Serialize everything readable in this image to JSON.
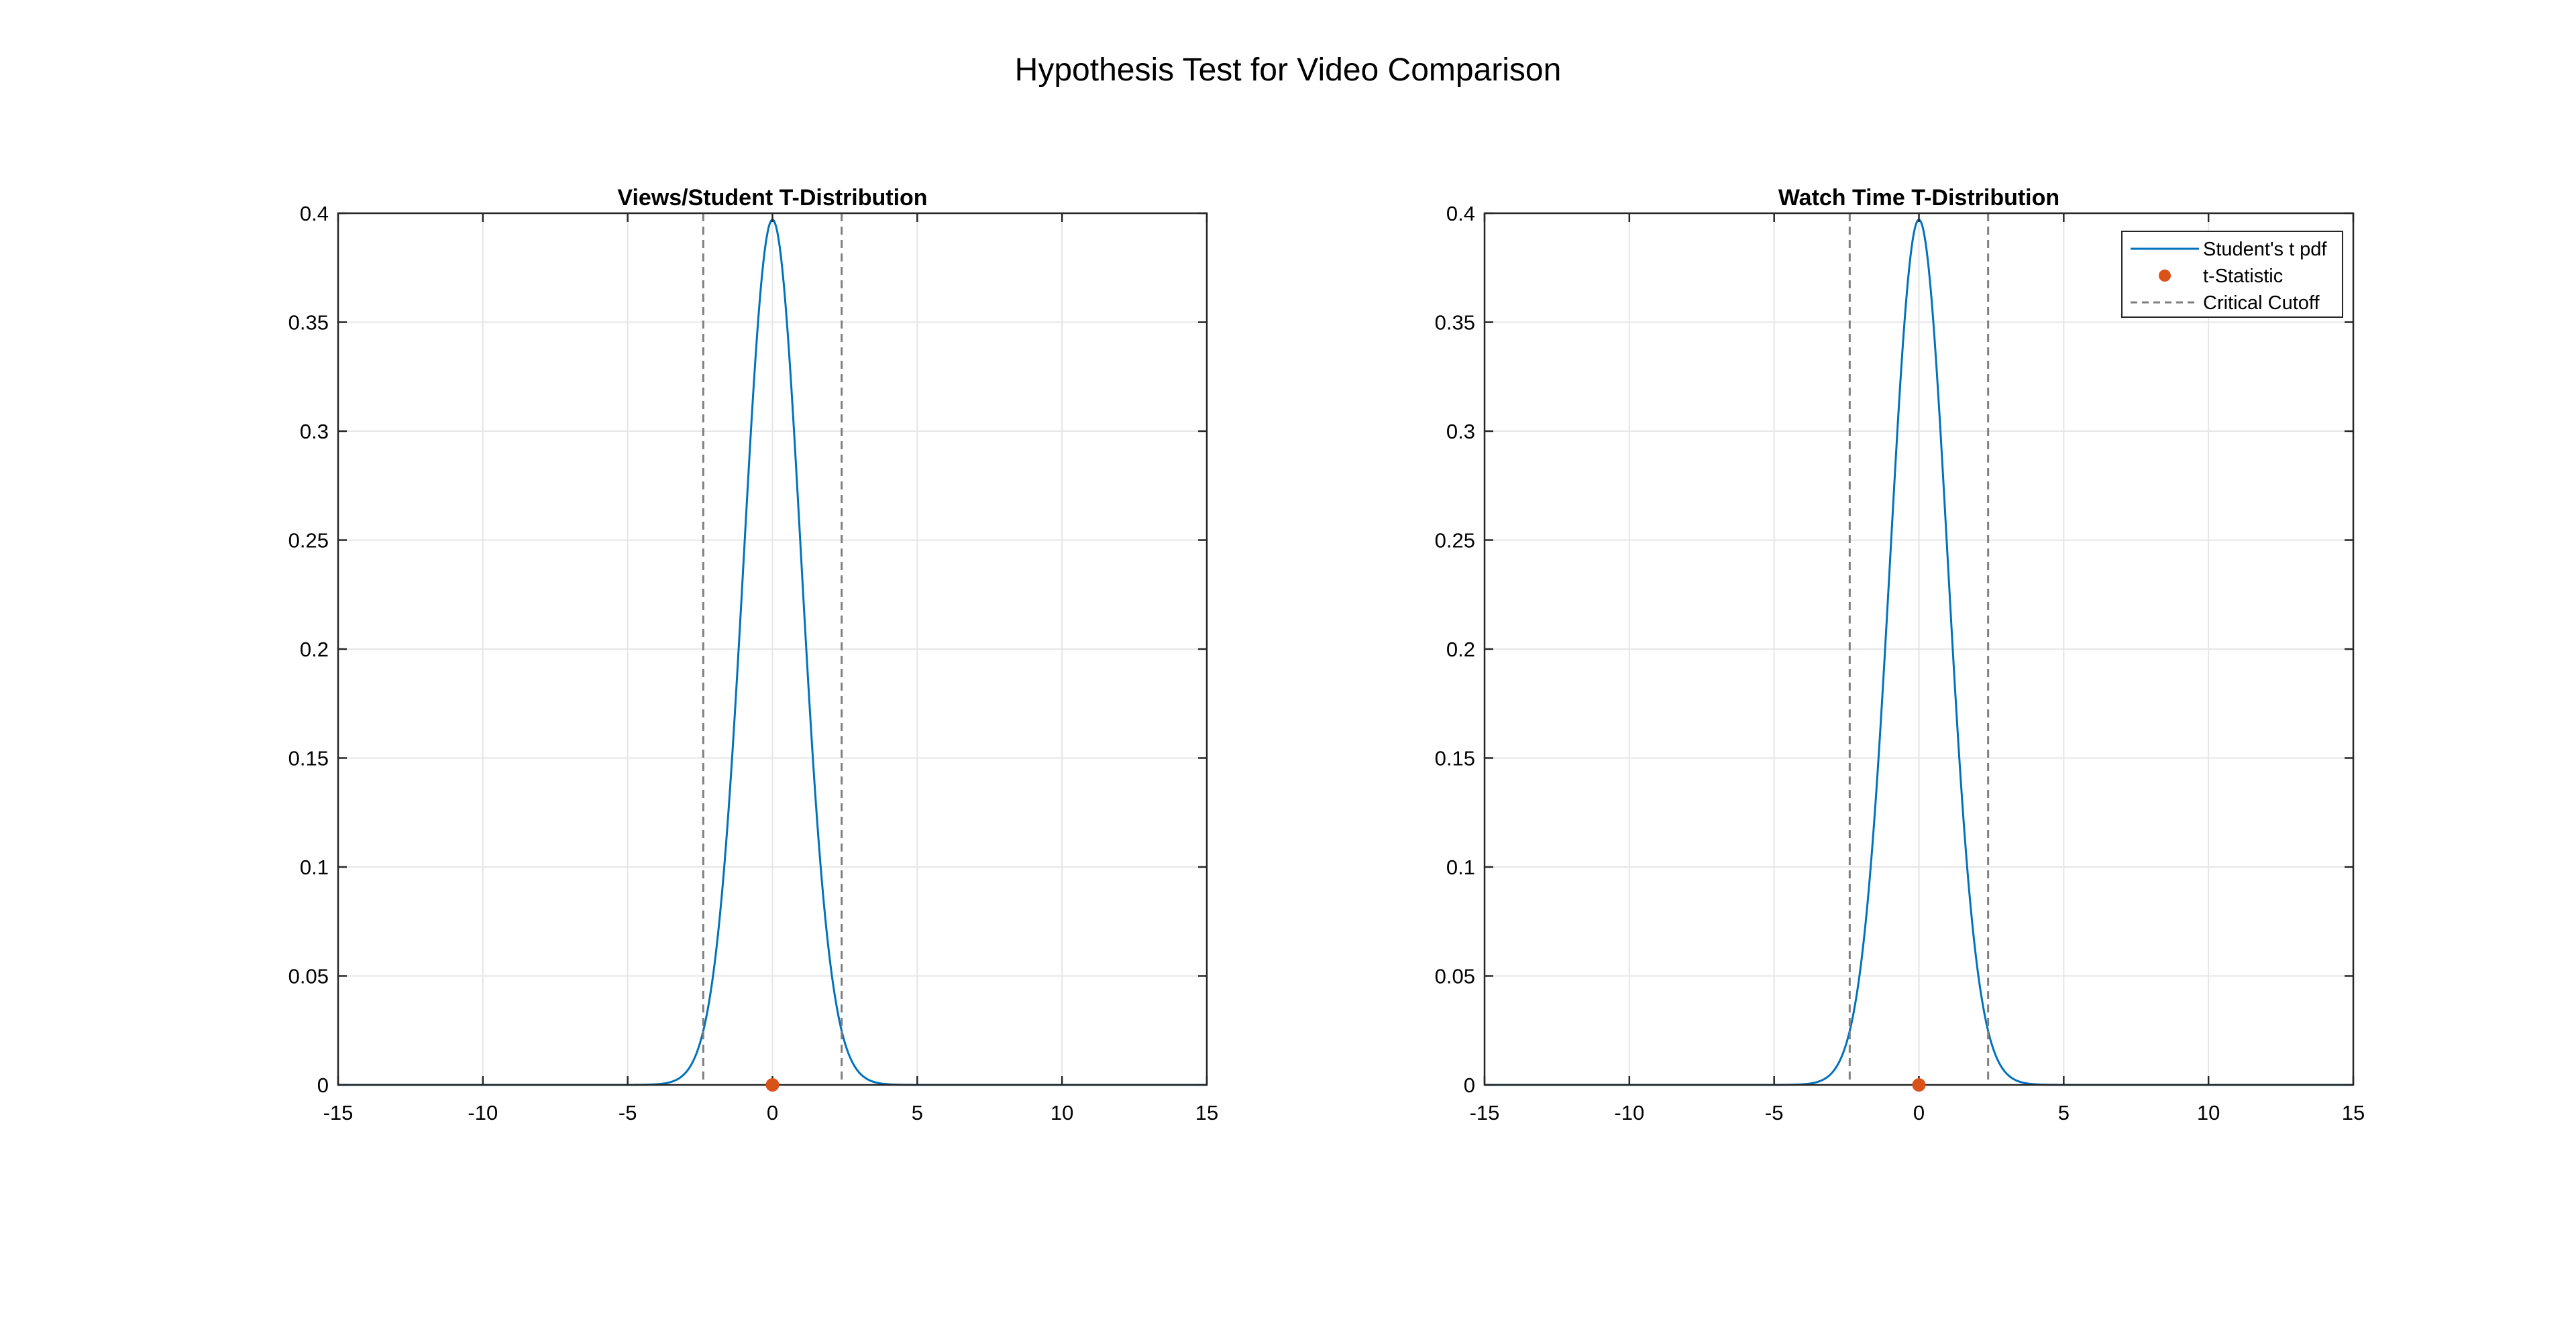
{
  "figure": {
    "title": "Hypothesis Test for Video Comparison"
  },
  "colors": {
    "pdf_line": "#0072BD",
    "t_statistic": "#D95319",
    "critical_cutoff": "#7f7f7f",
    "grid": "#e6e6e6",
    "axes": "#262626"
  },
  "chart_data": [
    {
      "type": "line",
      "title": "Views/Student T-Distribution",
      "xlabel": "",
      "ylabel": "",
      "xlim": [
        -15,
        15
      ],
      "ylim": [
        0,
        0.4
      ],
      "xticks": [
        -15,
        -10,
        -5,
        0,
        5,
        10,
        15
      ],
      "xtick_labels": [
        "-15",
        "-10",
        "-5",
        "0",
        "5",
        "10",
        "15"
      ],
      "yticks": [
        0,
        0.05,
        0.1,
        0.15,
        0.2,
        0.25,
        0.3,
        0.35,
        0.4
      ],
      "ytick_labels": [
        "0",
        "0.05",
        "0.1",
        "0.15",
        "0.2",
        "0.25",
        "0.3",
        "0.35",
        "0.4"
      ],
      "grid": true,
      "distribution": {
        "family": "student_t",
        "df": 60,
        "x_range": [
          -15,
          15
        ],
        "peak": 0.397
      },
      "t_statistic": {
        "x": 0.0,
        "y": 0
      },
      "critical_cutoffs": [
        -2.39,
        2.39
      ],
      "legend": null
    },
    {
      "type": "line",
      "title": "Watch Time T-Distribution",
      "xlabel": "",
      "ylabel": "",
      "xlim": [
        -15,
        15
      ],
      "ylim": [
        0,
        0.4
      ],
      "xticks": [
        -15,
        -10,
        -5,
        0,
        5,
        10,
        15
      ],
      "xtick_labels": [
        "-15",
        "-10",
        "-5",
        "0",
        "5",
        "10",
        "15"
      ],
      "yticks": [
        0,
        0.05,
        0.1,
        0.15,
        0.2,
        0.25,
        0.3,
        0.35,
        0.4
      ],
      "ytick_labels": [
        "0",
        "0.05",
        "0.1",
        "0.15",
        "0.2",
        "0.25",
        "0.3",
        "0.35",
        "0.4"
      ],
      "grid": true,
      "distribution": {
        "family": "student_t",
        "df": 60,
        "x_range": [
          -15,
          15
        ],
        "peak": 0.397
      },
      "t_statistic": {
        "x": 0.0,
        "y": 0
      },
      "critical_cutoffs": [
        -2.39,
        2.39
      ],
      "legend": {
        "location": "top-right",
        "entries": [
          "Student's t pdf",
          "t-Statistic",
          "Critical Cutoff"
        ]
      }
    }
  ]
}
